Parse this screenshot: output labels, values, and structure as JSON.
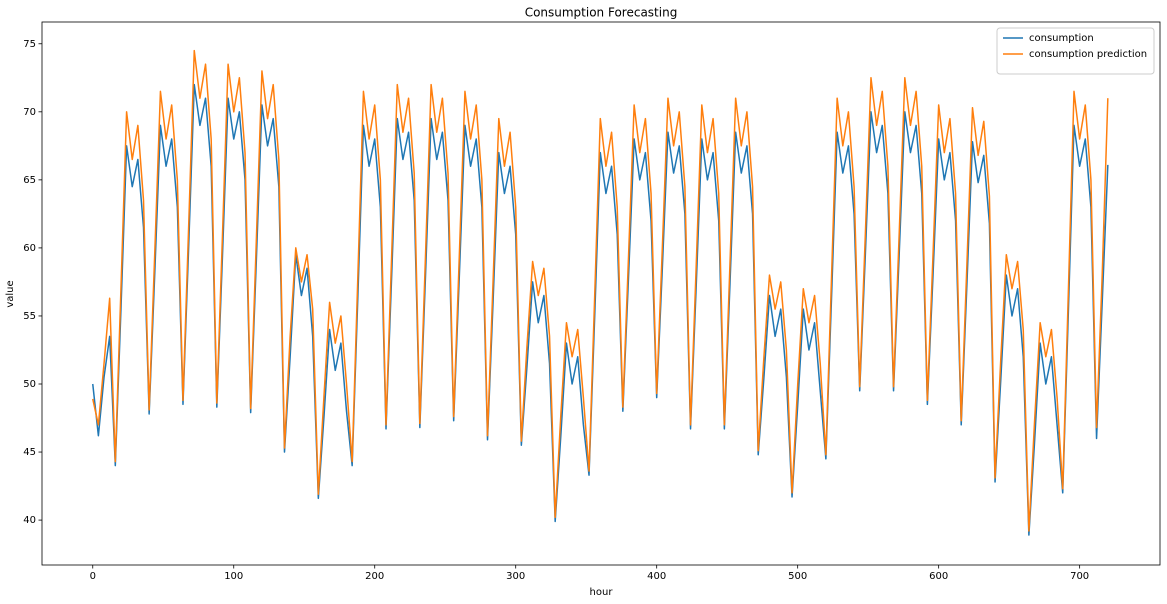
{
  "chart_data": {
    "type": "line",
    "title": "Consumption Forecasting",
    "x_label": "hour",
    "y_label": "value",
    "x": [
      0,
      4,
      8,
      12,
      16,
      20,
      24,
      28,
      32,
      36,
      40,
      44,
      48,
      52,
      56,
      60,
      64,
      68,
      72,
      76,
      80,
      84,
      88,
      92,
      96,
      100,
      104,
      108,
      112,
      116,
      120,
      124,
      128,
      132,
      136,
      140,
      144,
      148,
      152,
      156,
      160,
      164,
      168,
      172,
      176,
      180,
      184,
      188,
      192,
      196,
      200,
      204,
      208,
      212,
      216,
      220,
      224,
      228,
      232,
      236,
      240,
      244,
      248,
      252,
      256,
      260,
      264,
      268,
      272,
      276,
      280,
      284,
      288,
      292,
      296,
      300,
      304,
      308,
      312,
      316,
      320,
      324,
      328,
      332,
      336,
      340,
      344,
      348,
      352,
      356,
      360,
      364,
      368,
      372,
      376,
      380,
      384,
      388,
      392,
      396,
      400,
      404,
      408,
      412,
      416,
      420,
      424,
      428,
      432,
      436,
      440,
      444,
      448,
      452,
      456,
      460,
      464,
      468,
      472,
      476,
      480,
      484,
      488,
      492,
      496,
      500,
      504,
      508,
      512,
      516,
      520,
      524,
      528,
      532,
      536,
      540,
      544,
      548,
      552,
      556,
      560,
      564,
      568,
      572,
      576,
      580,
      584,
      588,
      592,
      596,
      600,
      604,
      608,
      612,
      616,
      620,
      624,
      628,
      632,
      636,
      640,
      644,
      648,
      652,
      656,
      660,
      664,
      668,
      672,
      676,
      680,
      684,
      688,
      692,
      696,
      700,
      704,
      708,
      712,
      716,
      720
    ],
    "series": [
      {
        "name": "consumption",
        "color": "#1f77b4",
        "values": [
          50,
          46.2,
          50.5,
          53.5,
          44.0,
          55.5,
          67.5,
          64.5,
          66.5,
          61.5,
          47.8,
          58.2,
          69,
          66,
          68,
          63,
          48.5,
          60,
          72,
          69,
          71,
          66,
          48.3,
          59.4,
          71,
          68,
          70,
          65,
          47.9,
          59,
          70.5,
          67.5,
          69.5,
          64.5,
          45,
          52,
          59.5,
          56.5,
          58.5,
          53.5,
          41.6,
          47.6,
          54,
          51,
          53,
          48,
          44,
          56.3,
          69,
          66,
          68,
          63,
          46.7,
          57.9,
          69.5,
          66.5,
          68.5,
          63.5,
          46.8,
          57.9,
          69.5,
          66.5,
          68.5,
          63.5,
          47.3,
          57.9,
          69,
          66,
          68,
          63,
          45.9,
          56.2,
          67,
          64,
          66,
          61,
          45.5,
          51.3,
          57.5,
          54.5,
          56.5,
          51.5,
          39.9,
          46.2,
          53,
          50,
          52,
          47,
          43.3,
          54.9,
          67,
          64,
          66,
          61,
          48,
          57.8,
          68,
          65,
          67,
          62,
          49,
          58.5,
          68.5,
          65.5,
          67.5,
          62.5,
          46.7,
          57.1,
          68,
          65,
          67,
          62,
          46.7,
          57.4,
          68.5,
          65.5,
          67.5,
          62.5,
          44.8,
          50.4,
          56.5,
          53.5,
          55.5,
          50.5,
          41.7,
          48.4,
          55.5,
          52.5,
          54.5,
          49.5,
          44.5,
          56.3,
          68.5,
          65.5,
          67.5,
          62.5,
          49.5,
          59.5,
          70,
          67,
          69,
          64,
          49.5,
          59.5,
          70,
          67,
          69,
          64,
          48.5,
          58,
          68,
          65,
          67,
          62,
          47,
          57.2,
          67.8,
          64.8,
          66.8,
          61.8,
          42.8,
          50.2,
          58,
          55,
          57,
          52,
          38.9,
          45.7,
          53,
          50,
          52,
          47,
          42,
          55.3,
          69,
          66,
          68,
          63,
          46,
          56,
          66.1
        ]
      },
      {
        "name": "consumption prediction",
        "color": "#ff7f0e",
        "values": [
          48.9,
          47,
          51.5,
          56.3,
          44.3,
          57,
          70,
          66.5,
          69,
          63.5,
          48.1,
          59.7,
          71.5,
          68,
          70.5,
          65,
          48.8,
          61.5,
          74.5,
          71,
          73.5,
          68,
          48.6,
          60.9,
          73.5,
          70,
          72.5,
          67,
          48.2,
          60.5,
          73,
          69.5,
          72,
          66.5,
          45.3,
          53.5,
          60,
          57.5,
          59.5,
          55.5,
          41.9,
          49.1,
          56,
          53,
          55,
          50,
          44.3,
          57.8,
          71.5,
          68,
          70.5,
          65,
          47,
          59.4,
          72,
          68.5,
          71,
          65.5,
          47.1,
          59.4,
          72,
          68.5,
          71,
          65.5,
          47.6,
          59.4,
          71.5,
          68,
          70.5,
          65,
          46.2,
          57.7,
          69.5,
          66,
          68.5,
          63,
          45.8,
          52.8,
          59,
          56.5,
          58.5,
          53.5,
          40.2,
          47.7,
          54.5,
          52,
          54,
          49,
          43.6,
          56.4,
          69.5,
          66,
          68.5,
          63,
          48.3,
          59.3,
          70.5,
          67,
          69.5,
          64,
          49.3,
          60,
          71,
          67.5,
          70,
          64.5,
          47,
          58.6,
          70.5,
          67,
          69.5,
          64,
          47,
          58.9,
          71,
          67.5,
          70,
          64.5,
          45.1,
          51.9,
          58,
          55.5,
          57.5,
          52.5,
          42,
          49.9,
          57,
          54.5,
          56.5,
          51.5,
          44.8,
          57.8,
          71,
          67.5,
          70,
          64.5,
          49.8,
          61,
          72.5,
          69,
          71.5,
          66,
          49.8,
          61,
          72.5,
          69,
          71.5,
          66,
          48.8,
          59.5,
          70.5,
          67,
          69.5,
          64,
          47.3,
          58.7,
          70.3,
          66.8,
          69.3,
          63.8,
          43.1,
          51.7,
          59.5,
          57,
          59,
          54,
          39.2,
          47.2,
          54.5,
          52,
          54,
          49,
          42.3,
          56.8,
          71.5,
          68,
          70.5,
          65,
          46.8,
          58,
          71
        ]
      }
    ],
    "xlim": [
      -36,
      757
    ],
    "xticks": [
      0,
      100,
      200,
      300,
      400,
      500,
      600,
      700
    ],
    "ylim": [
      36.7,
      76.6
    ],
    "yticks": [
      40,
      45,
      50,
      55,
      60,
      65,
      70,
      75
    ],
    "grid": false,
    "legend": "upper right"
  }
}
